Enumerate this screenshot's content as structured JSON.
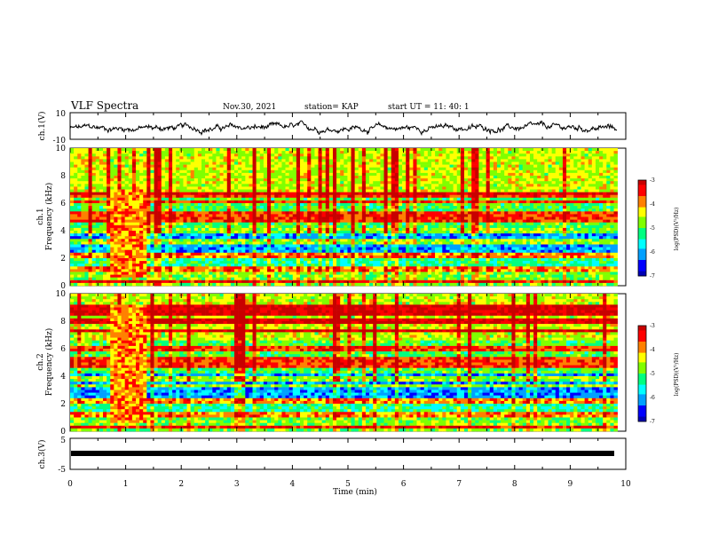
{
  "header": {
    "title": "VLF Spectra",
    "date": "Nov.30, 2021",
    "station": "station= KAP",
    "start": "start  UT  =   11: 40: 1"
  },
  "chart_data": [
    {
      "type": "line",
      "panel": "ch1-waveform",
      "ylabel": "ch.1(V)",
      "ylim": [
        -10,
        10
      ],
      "y_ticks": [
        "10",
        "-10"
      ],
      "x_range_min": [
        0,
        9.85
      ],
      "description_values": "noisy voltage trace around -2 V"
    },
    {
      "type": "heatmap",
      "panel": "ch1-spectrogram",
      "title": "ch.1",
      "ylabel": "Frequency  (kHz)",
      "ylim": [
        0,
        10
      ],
      "y_ticks": [
        "0",
        "2",
        "4",
        "6",
        "8",
        "10"
      ],
      "colorbar": {
        "label": "log(PSD)(V²/Hz)",
        "range": [
          -7,
          -3
        ],
        "ticks": [
          "-3",
          "-4",
          "-5",
          "-6",
          "-7"
        ]
      },
      "x_range_min": [
        0,
        9.85
      ],
      "bands_khz": [
        0.3,
        1.2,
        2.2,
        3.2,
        4.0,
        4.8,
        5.2,
        6.1,
        6.6
      ]
    },
    {
      "type": "heatmap",
      "panel": "ch2-spectrogram",
      "title": "ch.2",
      "ylabel": "Frequency  (kHz)",
      "ylim": [
        0,
        10
      ],
      "y_ticks": [
        "0",
        "2",
        "4",
        "6",
        "8",
        "10"
      ],
      "colorbar": {
        "label": "log(PSD)(V²/Hz)",
        "range": [
          -7,
          -3
        ],
        "ticks": [
          "-3",
          "-4",
          "-5",
          "-6",
          "-7"
        ]
      },
      "x_range_min": [
        0,
        9.85
      ],
      "bands_khz": [
        0.3,
        1.2,
        2.2,
        3.3,
        3.8,
        4.8,
        5.2,
        6.0,
        7.3,
        8.0,
        8.6,
        9.0
      ]
    },
    {
      "type": "line",
      "panel": "ch3-waveform",
      "ylabel": "ch.3(V)",
      "ylim": [
        -5,
        5
      ],
      "y_ticks": [
        "5",
        "-5"
      ],
      "x_range_min": [
        0,
        9.85
      ],
      "description_values": "flat thick trace near 0 V"
    }
  ],
  "xaxis": {
    "label": "Time  (min)",
    "range": [
      0,
      10
    ],
    "ticks": [
      "0",
      "1",
      "2",
      "3",
      "4",
      "5",
      "6",
      "7",
      "8",
      "9",
      "10"
    ]
  },
  "colors": {
    "colormap": [
      "#0000b4",
      "#0000ff",
      "#00a0ff",
      "#00ffff",
      "#00ff80",
      "#80ff00",
      "#ffff00",
      "#ff8000",
      "#ff0000",
      "#c80000"
    ]
  }
}
